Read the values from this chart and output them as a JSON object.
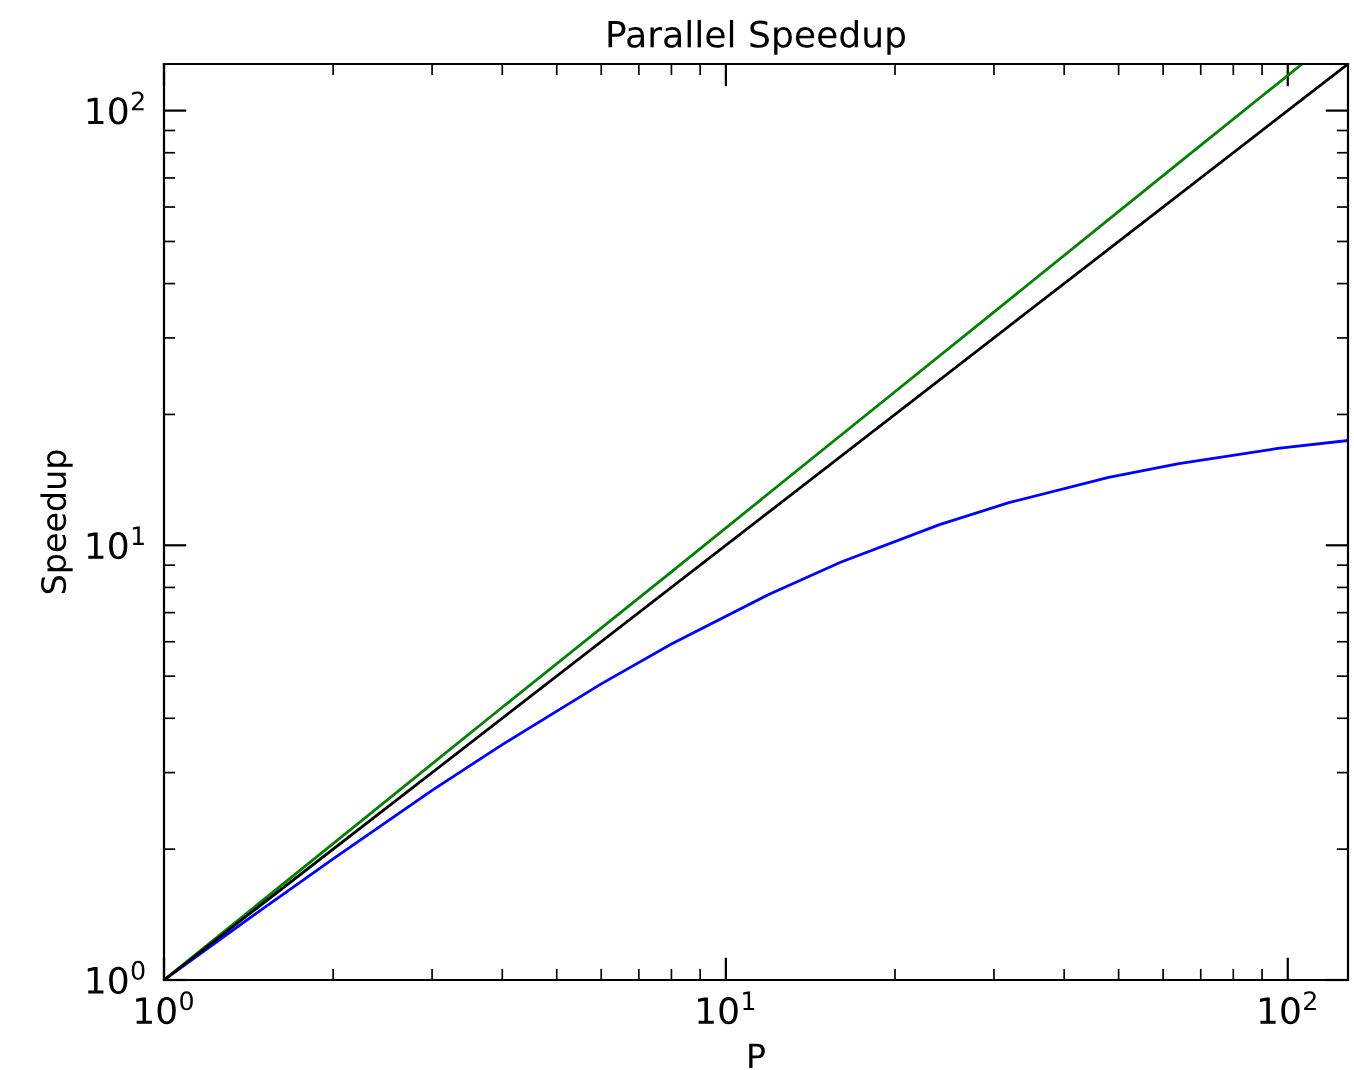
{
  "chart_data": {
    "type": "line",
    "title": "Parallel Speedup",
    "xlabel": "P",
    "ylabel": "Speedup",
    "log": "xy",
    "grid": false,
    "xlim": [
      1,
      128
    ],
    "ylim": [
      1,
      128
    ],
    "xticks": [
      {
        "value": 1,
        "label": "10$^{0}$"
      },
      {
        "value": 10,
        "label": "10$^{1}$"
      },
      {
        "value": 100,
        "label": "10$^{2}$"
      }
    ],
    "yticks": [
      {
        "value": 1,
        "label": "10$^{0}$"
      },
      {
        "value": 10,
        "label": "10$^{1}$"
      },
      {
        "value": 100,
        "label": "10$^{2}$"
      }
    ],
    "series": [
      {
        "color": "#0000ff",
        "x": [
          1,
          1.5,
          2,
          3,
          4,
          6,
          8,
          12,
          16,
          24,
          32,
          48,
          64,
          96,
          128
        ],
        "values": [
          1,
          1.46,
          1.9,
          2.73,
          3.48,
          4.8,
          5.93,
          7.74,
          9.14,
          11.16,
          12.55,
          14.33,
          15.42,
          16.7,
          17.42
        ]
      },
      {
        "color": "#008000",
        "x": [
          1,
          2,
          4,
          8,
          16,
          32,
          64,
          106
        ],
        "values": [
          1,
          2.06,
          4.24,
          8.69,
          17.89,
          36.8,
          75.8,
          128
        ]
      },
      {
        "color": "#000000",
        "x": [
          1,
          128
        ],
        "values": [
          1,
          128
        ]
      }
    ]
  }
}
